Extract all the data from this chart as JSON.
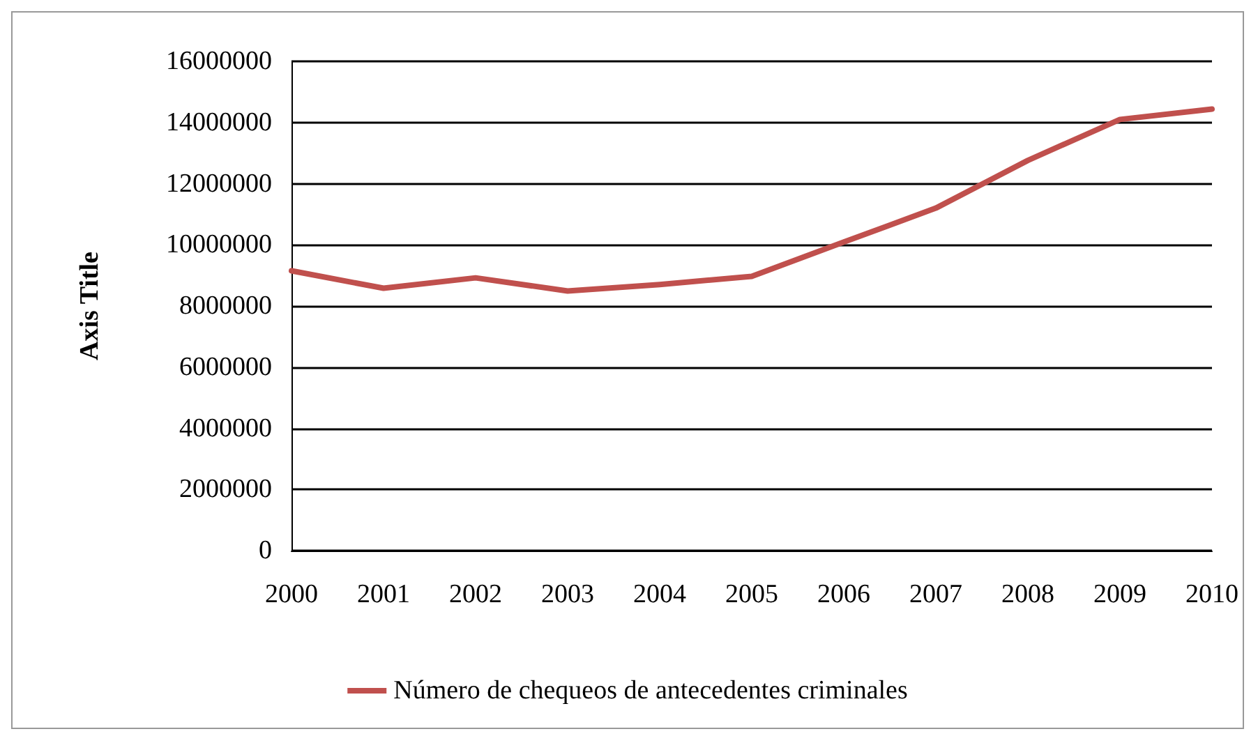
{
  "chart_data": {
    "type": "line",
    "ylabel": "Axis Title",
    "categories": [
      "2000",
      "2001",
      "2002",
      "2003",
      "2004",
      "2005",
      "2006",
      "2007",
      "2008",
      "2009",
      "2010"
    ],
    "series": [
      {
        "name": "Número de chequeos de antecedentes criminales",
        "color": "#c0504d",
        "values": [
          9150000,
          8580000,
          8920000,
          8490000,
          8700000,
          8970000,
          10090000,
          11200000,
          12760000,
          14100000,
          14440000
        ]
      }
    ],
    "ylim": [
      0,
      16000000
    ],
    "yticks": [
      0,
      2000000,
      4000000,
      6000000,
      8000000,
      10000000,
      12000000,
      14000000,
      16000000
    ],
    "grid": "y",
    "legend": "bottom",
    "marker": "none",
    "line_style": "solid"
  }
}
